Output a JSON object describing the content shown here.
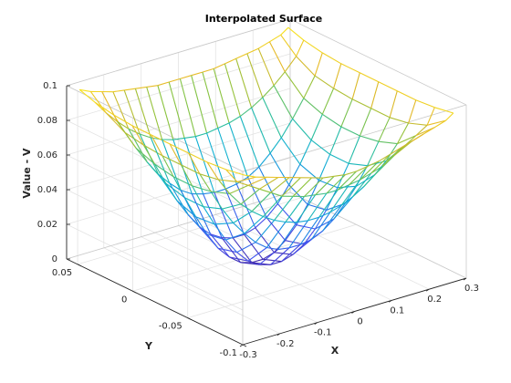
{
  "chart_data": {
    "type": "surface-mesh",
    "title": "Interpolated Surface",
    "xlabel": "X",
    "ylabel": "Y",
    "zlabel": "Value - V",
    "xlim": [
      -0.3,
      0.3
    ],
    "ylim": [
      -0.1,
      0.06
    ],
    "zlim": [
      0,
      0.1
    ],
    "x_ticks": [
      {
        "value": -0.3,
        "label": "-0.3"
      },
      {
        "value": -0.2,
        "label": "-0.2"
      },
      {
        "value": -0.1,
        "label": "-0.1"
      },
      {
        "value": 0,
        "label": "0"
      },
      {
        "value": 0.1,
        "label": "0.1"
      },
      {
        "value": 0.2,
        "label": "0.2"
      },
      {
        "value": 0.3,
        "label": "0.3"
      }
    ],
    "y_ticks": [
      {
        "value": -0.1,
        "label": "-0.1"
      },
      {
        "value": -0.05,
        "label": "-0.05"
      },
      {
        "value": 0,
        "label": "0"
      },
      {
        "value": 0.05,
        "label": "0.05"
      }
    ],
    "z_ticks": [
      {
        "value": 0,
        "label": "0"
      },
      {
        "value": 0.02,
        "label": "0.02"
      },
      {
        "value": 0.04,
        "label": "0.04"
      },
      {
        "value": 0.06,
        "label": "0.06"
      },
      {
        "value": 0.08,
        "label": "0.08"
      },
      {
        "value": 0.1,
        "label": "0.1"
      }
    ],
    "grid": true,
    "colormap": "parula",
    "mesh_x": [
      -0.28,
      -0.25,
      -0.22,
      -0.19,
      -0.16,
      -0.13,
      -0.1,
      -0.07,
      -0.04,
      -0.01,
      0.02,
      0.05,
      0.08,
      0.11,
      0.14,
      0.17,
      0.2,
      0.23,
      0.26,
      0.28
    ],
    "mesh_y": [
      -0.095,
      -0.078,
      -0.061,
      -0.044,
      -0.027,
      -0.01,
      0.007,
      0.024,
      0.041,
      0.055
    ],
    "z_rows": [
      [
        0.095,
        0.092,
        0.09,
        0.088,
        0.086,
        0.084,
        0.082,
        0.08,
        0.079,
        0.078,
        0.078,
        0.079,
        0.08,
        0.082,
        0.084,
        0.086,
        0.088,
        0.09,
        0.092,
        0.095
      ],
      [
        0.093,
        0.084,
        0.08,
        0.076,
        0.072,
        0.068,
        0.066,
        0.064,
        0.063,
        0.062,
        0.062,
        0.063,
        0.064,
        0.066,
        0.068,
        0.072,
        0.076,
        0.08,
        0.084,
        0.093
      ],
      [
        0.092,
        0.08,
        0.07,
        0.062,
        0.056,
        0.051,
        0.047,
        0.044,
        0.042,
        0.041,
        0.041,
        0.042,
        0.044,
        0.047,
        0.051,
        0.056,
        0.062,
        0.07,
        0.08,
        0.092
      ],
      [
        0.092,
        0.078,
        0.066,
        0.054,
        0.044,
        0.036,
        0.029,
        0.024,
        0.021,
        0.02,
        0.02,
        0.021,
        0.024,
        0.029,
        0.036,
        0.044,
        0.054,
        0.066,
        0.078,
        0.092
      ],
      [
        0.092,
        0.078,
        0.064,
        0.05,
        0.038,
        0.027,
        0.018,
        0.011,
        0.007,
        0.005,
        0.005,
        0.007,
        0.011,
        0.018,
        0.027,
        0.038,
        0.05,
        0.064,
        0.078,
        0.092
      ],
      [
        0.092,
        0.078,
        0.064,
        0.05,
        0.037,
        0.025,
        0.015,
        0.008,
        0.003,
        0.001,
        0.001,
        0.003,
        0.008,
        0.015,
        0.025,
        0.037,
        0.05,
        0.064,
        0.078,
        0.092
      ],
      [
        0.092,
        0.079,
        0.066,
        0.053,
        0.041,
        0.031,
        0.022,
        0.016,
        0.012,
        0.01,
        0.01,
        0.012,
        0.016,
        0.022,
        0.031,
        0.041,
        0.053,
        0.066,
        0.079,
        0.092
      ],
      [
        0.093,
        0.081,
        0.07,
        0.06,
        0.051,
        0.044,
        0.038,
        0.034,
        0.032,
        0.031,
        0.031,
        0.032,
        0.034,
        0.038,
        0.044,
        0.051,
        0.06,
        0.07,
        0.081,
        0.093
      ],
      [
        0.095,
        0.087,
        0.08,
        0.074,
        0.069,
        0.065,
        0.062,
        0.06,
        0.059,
        0.058,
        0.058,
        0.059,
        0.06,
        0.062,
        0.065,
        0.069,
        0.074,
        0.08,
        0.087,
        0.095
      ],
      [
        0.098,
        0.095,
        0.093,
        0.091,
        0.09,
        0.089,
        0.088,
        0.087,
        0.087,
        0.087,
        0.087,
        0.087,
        0.087,
        0.088,
        0.089,
        0.09,
        0.091,
        0.093,
        0.095,
        0.098
      ]
    ]
  }
}
